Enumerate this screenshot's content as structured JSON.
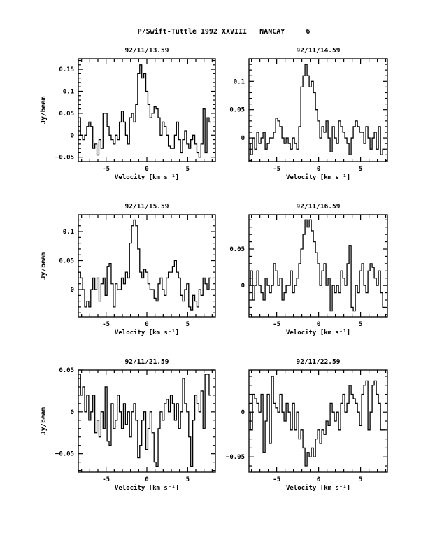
{
  "figure_title": "P/Swift-Tuttle 1992 XXVIII   NANCAY     6",
  "chart_data": [
    {
      "type": "line",
      "title": "92/11/13.59",
      "xlabel": "Velocity [km s⁻¹]",
      "ylabel": "Jy/beam",
      "xlim": [
        -8.4,
        8.4
      ],
      "ylim": [
        -0.06,
        0.174
      ],
      "xticks": [
        -5,
        0,
        5
      ],
      "yticks": [
        -0.05,
        0,
        0.05,
        0.1,
        0.15
      ],
      "x_start": -8.25,
      "dx": 0.25,
      "values": [
        0.04,
        0.0,
        -0.01,
        0.0,
        0.02,
        0.03,
        0.02,
        -0.03,
        -0.02,
        -0.045,
        -0.01,
        -0.03,
        0.05,
        0.05,
        0.02,
        0.0,
        -0.01,
        -0.02,
        0.0,
        -0.01,
        0.03,
        0.055,
        0.03,
        0.0,
        -0.02,
        0.04,
        0.05,
        0.03,
        0.07,
        0.14,
        0.16,
        0.13,
        0.14,
        0.1,
        0.07,
        0.04,
        0.05,
        0.065,
        0.06,
        0.04,
        0.0,
        0.03,
        0.02,
        0.0,
        -0.025,
        -0.03,
        -0.03,
        0.0,
        0.03,
        -0.01,
        -0.04,
        -0.01,
        0.01,
        -0.02,
        -0.03,
        -0.01,
        0.0,
        -0.02,
        -0.04,
        -0.05,
        -0.02,
        0.06,
        -0.04,
        0.04,
        0.03
      ]
    },
    {
      "type": "line",
      "title": "92/11/14.59",
      "xlabel": "Velocity [km s⁻¹]",
      "ylabel": "",
      "xlim": [
        -8.3,
        8.2
      ],
      "ylim": [
        -0.042,
        0.14
      ],
      "xticks": [
        -5,
        0,
        5
      ],
      "yticks": [
        0,
        0.05,
        0.1
      ],
      "x_start": -8.25,
      "dx": 0.25,
      "values": [
        -0.01,
        -0.03,
        0.0,
        -0.02,
        0.01,
        -0.01,
        0.0,
        0.01,
        -0.02,
        -0.01,
        0.0,
        0.0,
        0.01,
        0.035,
        0.03,
        0.02,
        0.0,
        -0.01,
        0.0,
        -0.01,
        -0.02,
        0.0,
        -0.01,
        -0.02,
        0.02,
        0.09,
        0.11,
        0.13,
        0.11,
        0.09,
        0.1,
        0.08,
        0.05,
        0.03,
        0.0,
        0.02,
        0.01,
        0.03,
        0.0,
        -0.025,
        0.02,
        0.0,
        -0.01,
        0.03,
        0.02,
        0.01,
        0.0,
        -0.01,
        -0.03,
        0.0,
        0.02,
        0.03,
        0.02,
        0.01,
        0.01,
        -0.01,
        0.02,
        0.0,
        -0.02,
        0.0,
        0.01,
        -0.02,
        0.02,
        -0.03,
        -0.02
      ]
    },
    {
      "type": "line",
      "title": "92/11/15.59",
      "xlabel": "Velocity [km s⁻¹]",
      "ylabel": "Jy/beam",
      "xlim": [
        -8.4,
        8.4
      ],
      "ylim": [
        -0.047,
        0.129
      ],
      "xticks": [
        -5,
        0,
        5
      ],
      "yticks": [
        0,
        0.05,
        0.1
      ],
      "x_start": -8.25,
      "dx": 0.25,
      "values": [
        0.03,
        0.02,
        0.0,
        -0.03,
        -0.02,
        -0.03,
        0.0,
        0.02,
        0.0,
        0.02,
        -0.02,
        0.01,
        0.02,
        -0.01,
        0.04,
        0.045,
        0.01,
        -0.03,
        0.01,
        0.0,
        0.0,
        0.02,
        0.01,
        0.03,
        0.02,
        0.08,
        0.11,
        0.12,
        0.11,
        0.07,
        0.03,
        0.02,
        0.035,
        0.03,
        0.01,
        0.0,
        0.0,
        -0.015,
        -0.02,
        0.01,
        0.02,
        0.0,
        -0.01,
        0.02,
        0.03,
        0.03,
        0.04,
        0.05,
        0.03,
        0.02,
        -0.01,
        -0.02,
        0.0,
        0.01,
        -0.03,
        -0.035,
        -0.01,
        -0.02,
        -0.03,
        0.0,
        -0.01,
        0.02,
        0.01,
        0.0,
        0.02
      ]
    },
    {
      "type": "line",
      "title": "92/11/16.59",
      "xlabel": "Velocity [km s⁻¹]",
      "ylabel": "",
      "xlim": [
        -8.3,
        8.2
      ],
      "ylim": [
        -0.043,
        0.097
      ],
      "xticks": [
        -5,
        0,
        5
      ],
      "yticks": [
        0,
        0.05
      ],
      "x_start": -8.25,
      "dx": 0.25,
      "values": [
        0.0,
        0.02,
        -0.02,
        0.0,
        0.02,
        0.0,
        -0.01,
        -0.02,
        0.01,
        0.0,
        -0.01,
        0.0,
        0.03,
        0.02,
        0.0,
        0.01,
        -0.02,
        -0.01,
        0.0,
        0.0,
        0.02,
        -0.01,
        0.0,
        0.01,
        0.03,
        0.05,
        0.07,
        0.09,
        0.08,
        0.09,
        0.075,
        0.06,
        0.045,
        0.03,
        0.0,
        0.02,
        0.03,
        0.0,
        0.01,
        -0.035,
        0.0,
        -0.01,
        0.0,
        -0.01,
        0.02,
        0.01,
        0.0,
        0.03,
        0.055,
        -0.03,
        -0.035,
        0.0,
        -0.01,
        0.02,
        0.03,
        0.0,
        -0.01,
        0.02,
        0.03,
        0.025,
        0.01,
        0.0,
        0.02,
        -0.01,
        -0.03
      ]
    },
    {
      "type": "line",
      "title": "92/11/21.59",
      "xlabel": "Velocity [km s⁻¹]",
      "ylabel": "Jy/beam",
      "xlim": [
        -8.4,
        8.4
      ],
      "ylim": [
        -0.072,
        0.05
      ],
      "xticks": [
        -5,
        0,
        5
      ],
      "yticks": [
        -0.05,
        0,
        0.05
      ],
      "x_start": -8.25,
      "dx": 0.25,
      "values": [
        0.045,
        0.02,
        0.03,
        0.0,
        0.02,
        -0.01,
        0.0,
        0.02,
        -0.025,
        -0.01,
        -0.03,
        0.0,
        -0.02,
        0.03,
        -0.035,
        -0.04,
        0.01,
        -0.02,
        -0.01,
        0.02,
        0.0,
        -0.02,
        0.01,
        -0.015,
        0.0,
        -0.03,
        0.0,
        0.01,
        -0.01,
        -0.055,
        -0.04,
        -0.01,
        0.0,
        -0.045,
        -0.02,
        0.0,
        -0.025,
        -0.06,
        -0.065,
        -0.02,
        0.0,
        -0.01,
        0.01,
        0.015,
        0.0,
        0.02,
        0.01,
        -0.01,
        0.01,
        -0.02,
        0.0,
        0.04,
        0.01,
        0.0,
        -0.03,
        -0.065,
        -0.01,
        0.02,
        0.01,
        0.0,
        0.025,
        -0.02,
        0.045,
        0.045,
        0.02
      ]
    },
    {
      "type": "line",
      "title": "92/11/22.59",
      "xlabel": "Velocity [km s⁻¹]",
      "ylabel": "",
      "xlim": [
        -8.3,
        8.2
      ],
      "ylim": [
        -0.067,
        0.047
      ],
      "xticks": [
        -5,
        0,
        5
      ],
      "yticks": [
        -0.05,
        0
      ],
      "x_start": -8.25,
      "dx": 0.25,
      "values": [
        0.0,
        -0.02,
        0.02,
        0.015,
        0.01,
        0.0,
        0.02,
        -0.045,
        -0.01,
        0.02,
        -0.035,
        0.04,
        0.01,
        0.005,
        0.0,
        0.02,
        0.0,
        -0.01,
        0.01,
        0.0,
        -0.02,
        0.01,
        -0.02,
        0.0,
        -0.03,
        -0.02,
        -0.04,
        -0.06,
        -0.045,
        -0.05,
        -0.04,
        -0.05,
        -0.03,
        -0.02,
        -0.035,
        -0.02,
        -0.025,
        -0.01,
        -0.015,
        0.01,
        0.0,
        -0.01,
        0.0,
        -0.02,
        0.01,
        0.02,
        0.0,
        0.01,
        0.03,
        0.02,
        0.015,
        0.01,
        0.0,
        -0.015,
        0.02,
        0.03,
        0.035,
        -0.02,
        0.0,
        0.03,
        0.035,
        0.02,
        0.01,
        -0.02,
        -0.02
      ]
    }
  ]
}
